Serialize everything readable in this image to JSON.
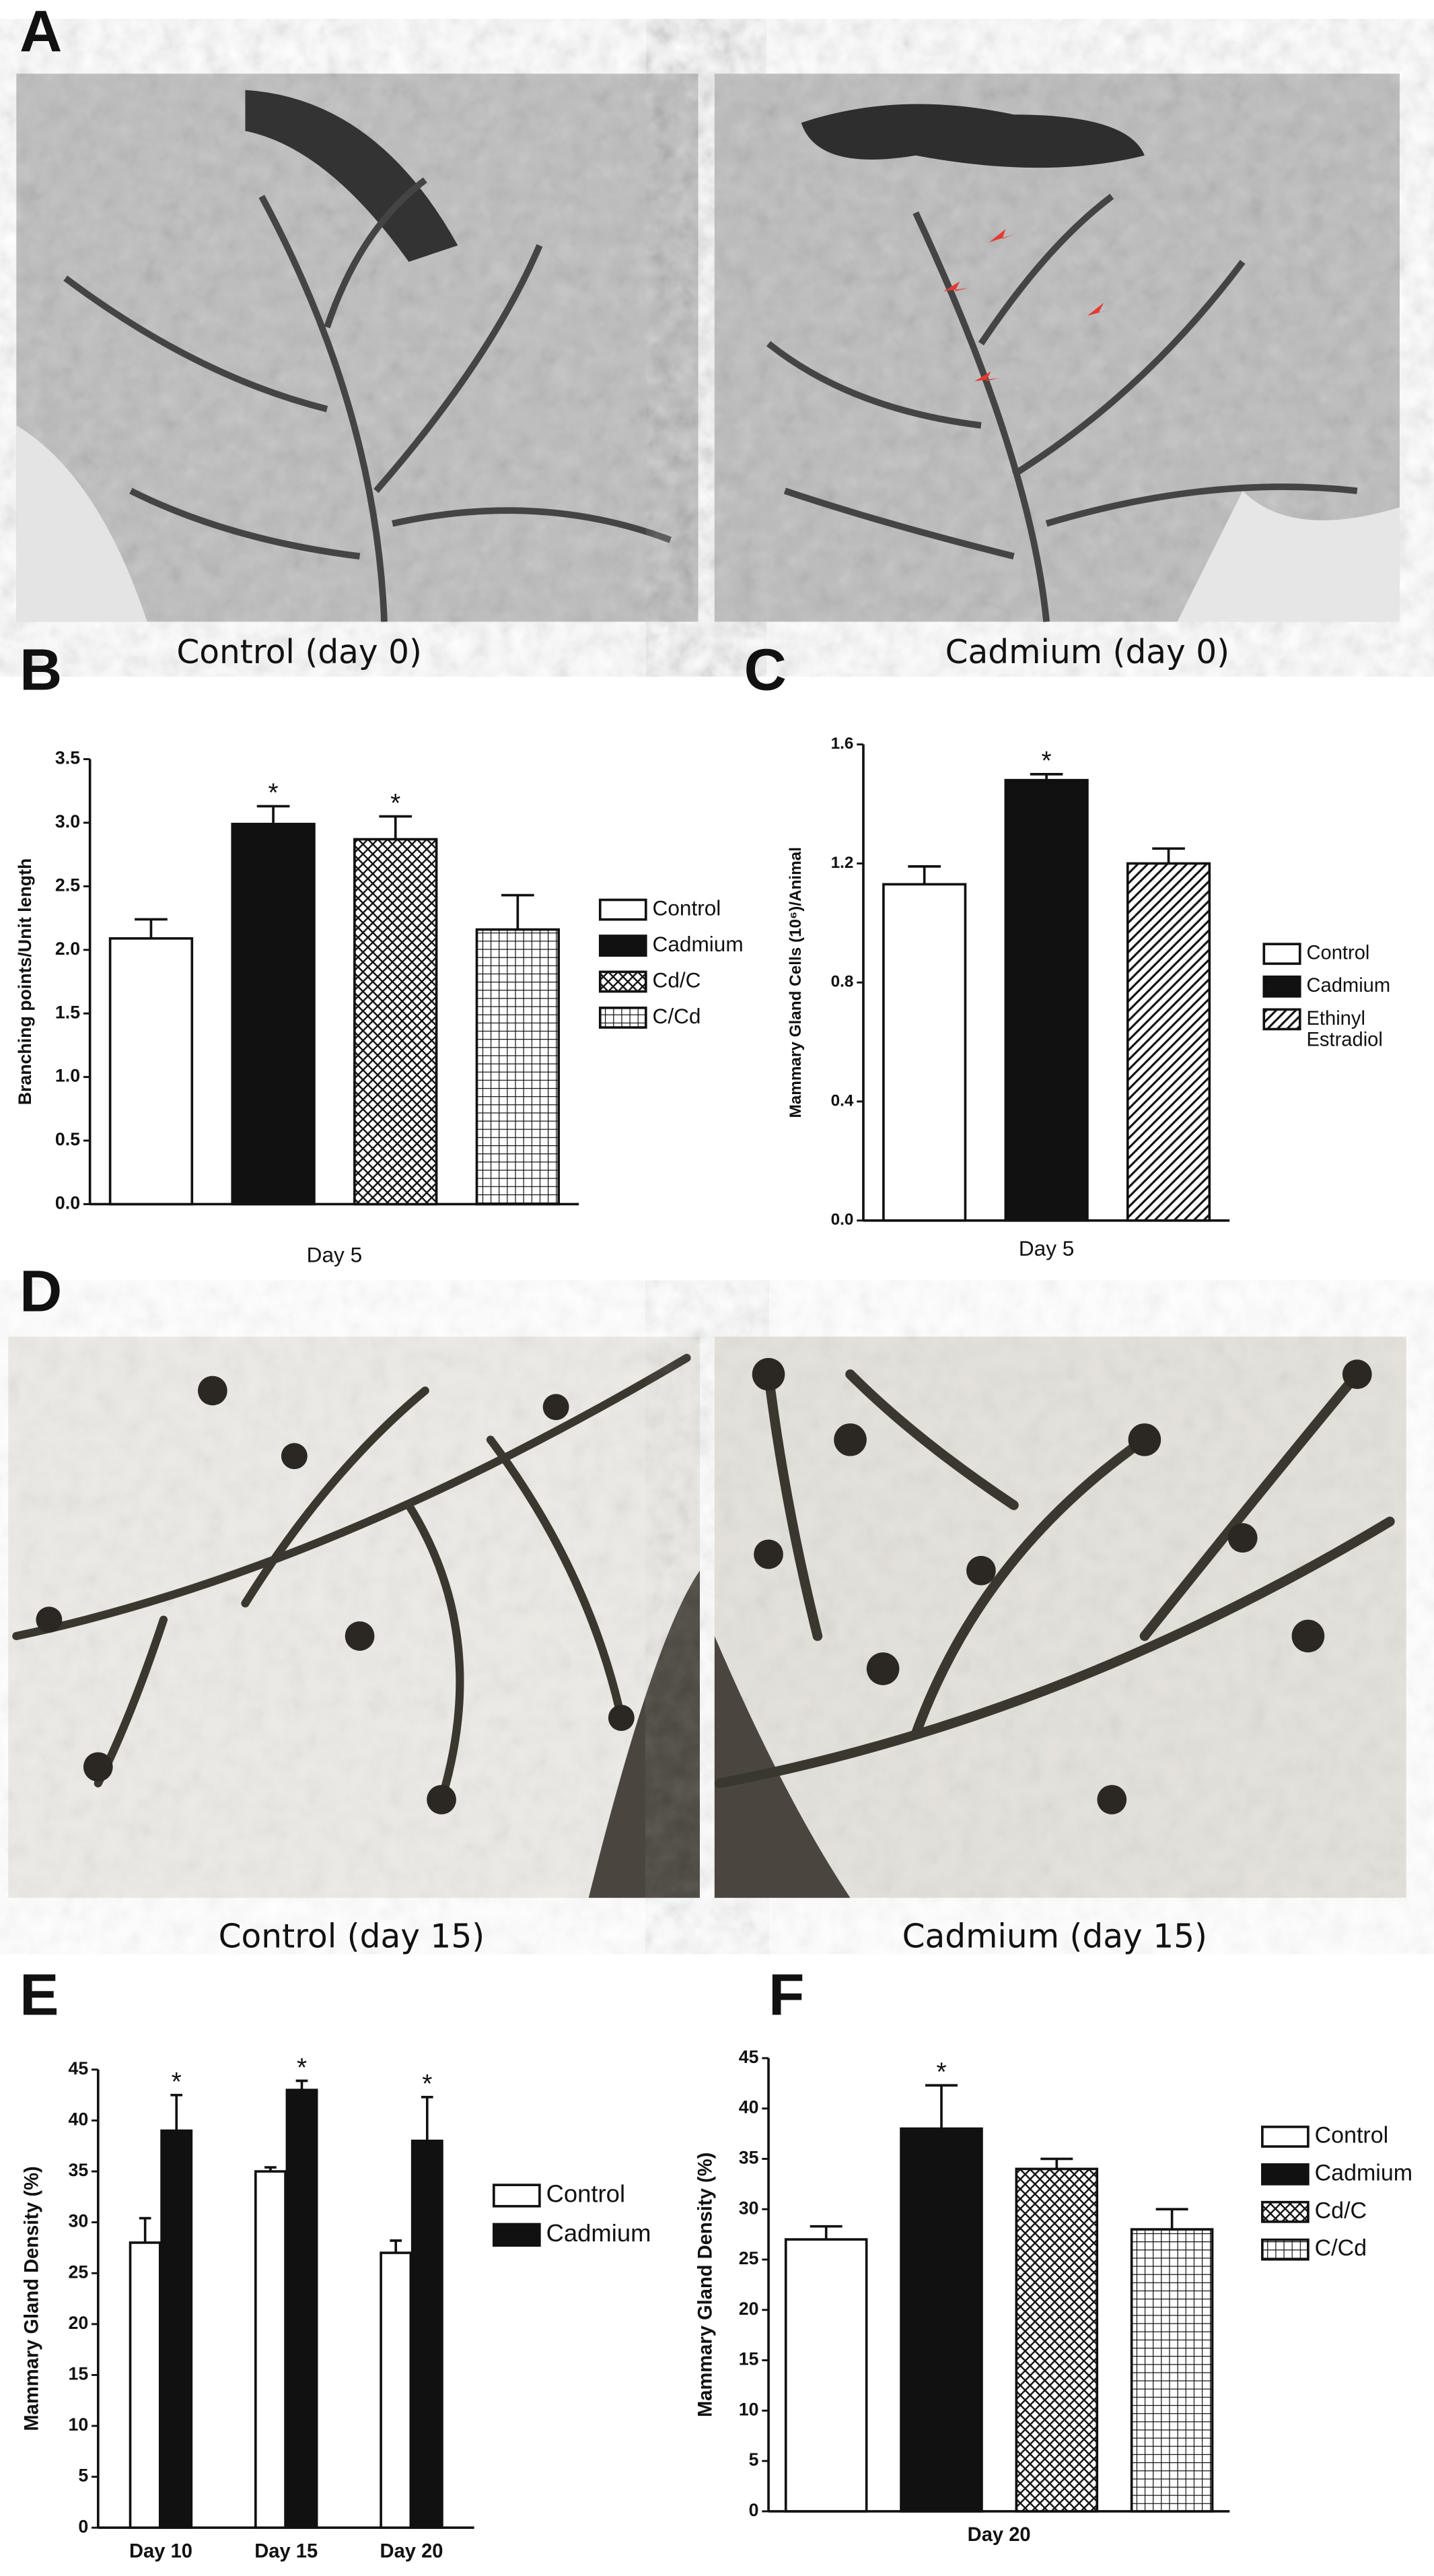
{
  "panel_labels": [
    "A",
    "B",
    "C",
    "D",
    "E",
    "F"
  ],
  "image_captions": [
    "Control (day 0)",
    "Cadmium (day 0)",
    "Control (day 15)",
    "Cadmium (day 15)"
  ],
  "chart_data": [
    {
      "type": "bar",
      "ylabel": "Branching points/Unit length",
      "categories": [
        "Day 5"
      ],
      "series": [
        {
          "name": "Control",
          "color": "#ffffff",
          "values": [
            2.09
          ],
          "errors": [
            0.15
          ]
        },
        {
          "name": "Cadmium",
          "color": "#111111",
          "values": [
            2.99
          ],
          "errors": [
            0.14
          ],
          "annotations": [
            "*"
          ]
        },
        {
          "name": "Cd/C",
          "color": "#ffffff",
          "pattern": "crosshatch",
          "values": [
            2.87
          ],
          "errors": [
            0.18
          ],
          "annotations": [
            "*"
          ]
        },
        {
          "name": "C/Cd",
          "color": "#ffffff",
          "pattern": "grid",
          "values": [
            2.16
          ],
          "errors": [
            0.27
          ]
        }
      ],
      "ylim": [
        0,
        3.5
      ],
      "yticks": [
        {
          "value": 0,
          "label": "0.0"
        },
        0.5,
        {
          "value": 1,
          "label": "1.0"
        },
        1.5,
        {
          "value": 2,
          "label": "2.0"
        },
        2.5,
        {
          "value": 3,
          "label": "3.0"
        },
        3.5
      ],
      "legend": "right"
    },
    {
      "type": "bar",
      "ylabel": "Mammary Gland Cells (10⁶)/Animal",
      "categories": [
        "Day 5"
      ],
      "series": [
        {
          "name": "Control",
          "color": "#ffffff",
          "values": [
            1.13
          ],
          "errors": [
            0.06
          ]
        },
        {
          "name": "Cadmium",
          "color": "#111111",
          "values": [
            1.48
          ],
          "errors": [
            0.02
          ],
          "annotations": [
            "*"
          ]
        },
        {
          "name": "Ethinyl Estradiol",
          "color": "#ffffff",
          "pattern": "diagonal",
          "values": [
            1.2
          ],
          "errors": [
            0.05
          ]
        }
      ],
      "ylim": [
        0,
        1.6
      ],
      "yticks": [
        {
          "value": 0,
          "label": "0.0"
        },
        0.4,
        0.8,
        1.2,
        1.6
      ],
      "legend": "right"
    },
    {
      "type": "bar",
      "ylabel": "Mammary Gland Density (%)",
      "categories": [
        "Day 10",
        "Day 15",
        "Day 20"
      ],
      "series": [
        {
          "name": "Control",
          "color": "#ffffff",
          "values": [
            28,
            35,
            27
          ],
          "errors": [
            2.4,
            0.4,
            1.2
          ]
        },
        {
          "name": "Cadmium",
          "color": "#111111",
          "values": [
            39,
            43,
            38
          ],
          "errors": [
            3.5,
            0.9,
            4.3
          ],
          "annotations": [
            "*",
            "*",
            "*"
          ]
        }
      ],
      "ylim": [
        0,
        45
      ],
      "yticks": [
        0,
        5,
        10,
        15,
        20,
        25,
        30,
        35,
        40,
        45
      ],
      "legend": "right"
    },
    {
      "type": "bar",
      "ylabel": "Mammary Gland Density (%)",
      "categories": [
        "Day 20"
      ],
      "series": [
        {
          "name": "Control",
          "color": "#ffffff",
          "values": [
            27
          ],
          "errors": [
            1.3
          ]
        },
        {
          "name": "Cadmium",
          "color": "#111111",
          "values": [
            38
          ],
          "errors": [
            4.3
          ],
          "annotations": [
            "*"
          ]
        },
        {
          "name": "Cd/C",
          "color": "#ffffff",
          "pattern": "crosshatch",
          "values": [
            34
          ],
          "errors": [
            1
          ]
        },
        {
          "name": "C/Cd",
          "color": "#ffffff",
          "pattern": "grid",
          "values": [
            28
          ],
          "errors": [
            2
          ]
        }
      ],
      "ylim": [
        0,
        45
      ],
      "yticks": [
        0,
        5,
        10,
        15,
        20,
        25,
        30,
        35,
        40,
        45
      ],
      "legend": "right"
    }
  ]
}
